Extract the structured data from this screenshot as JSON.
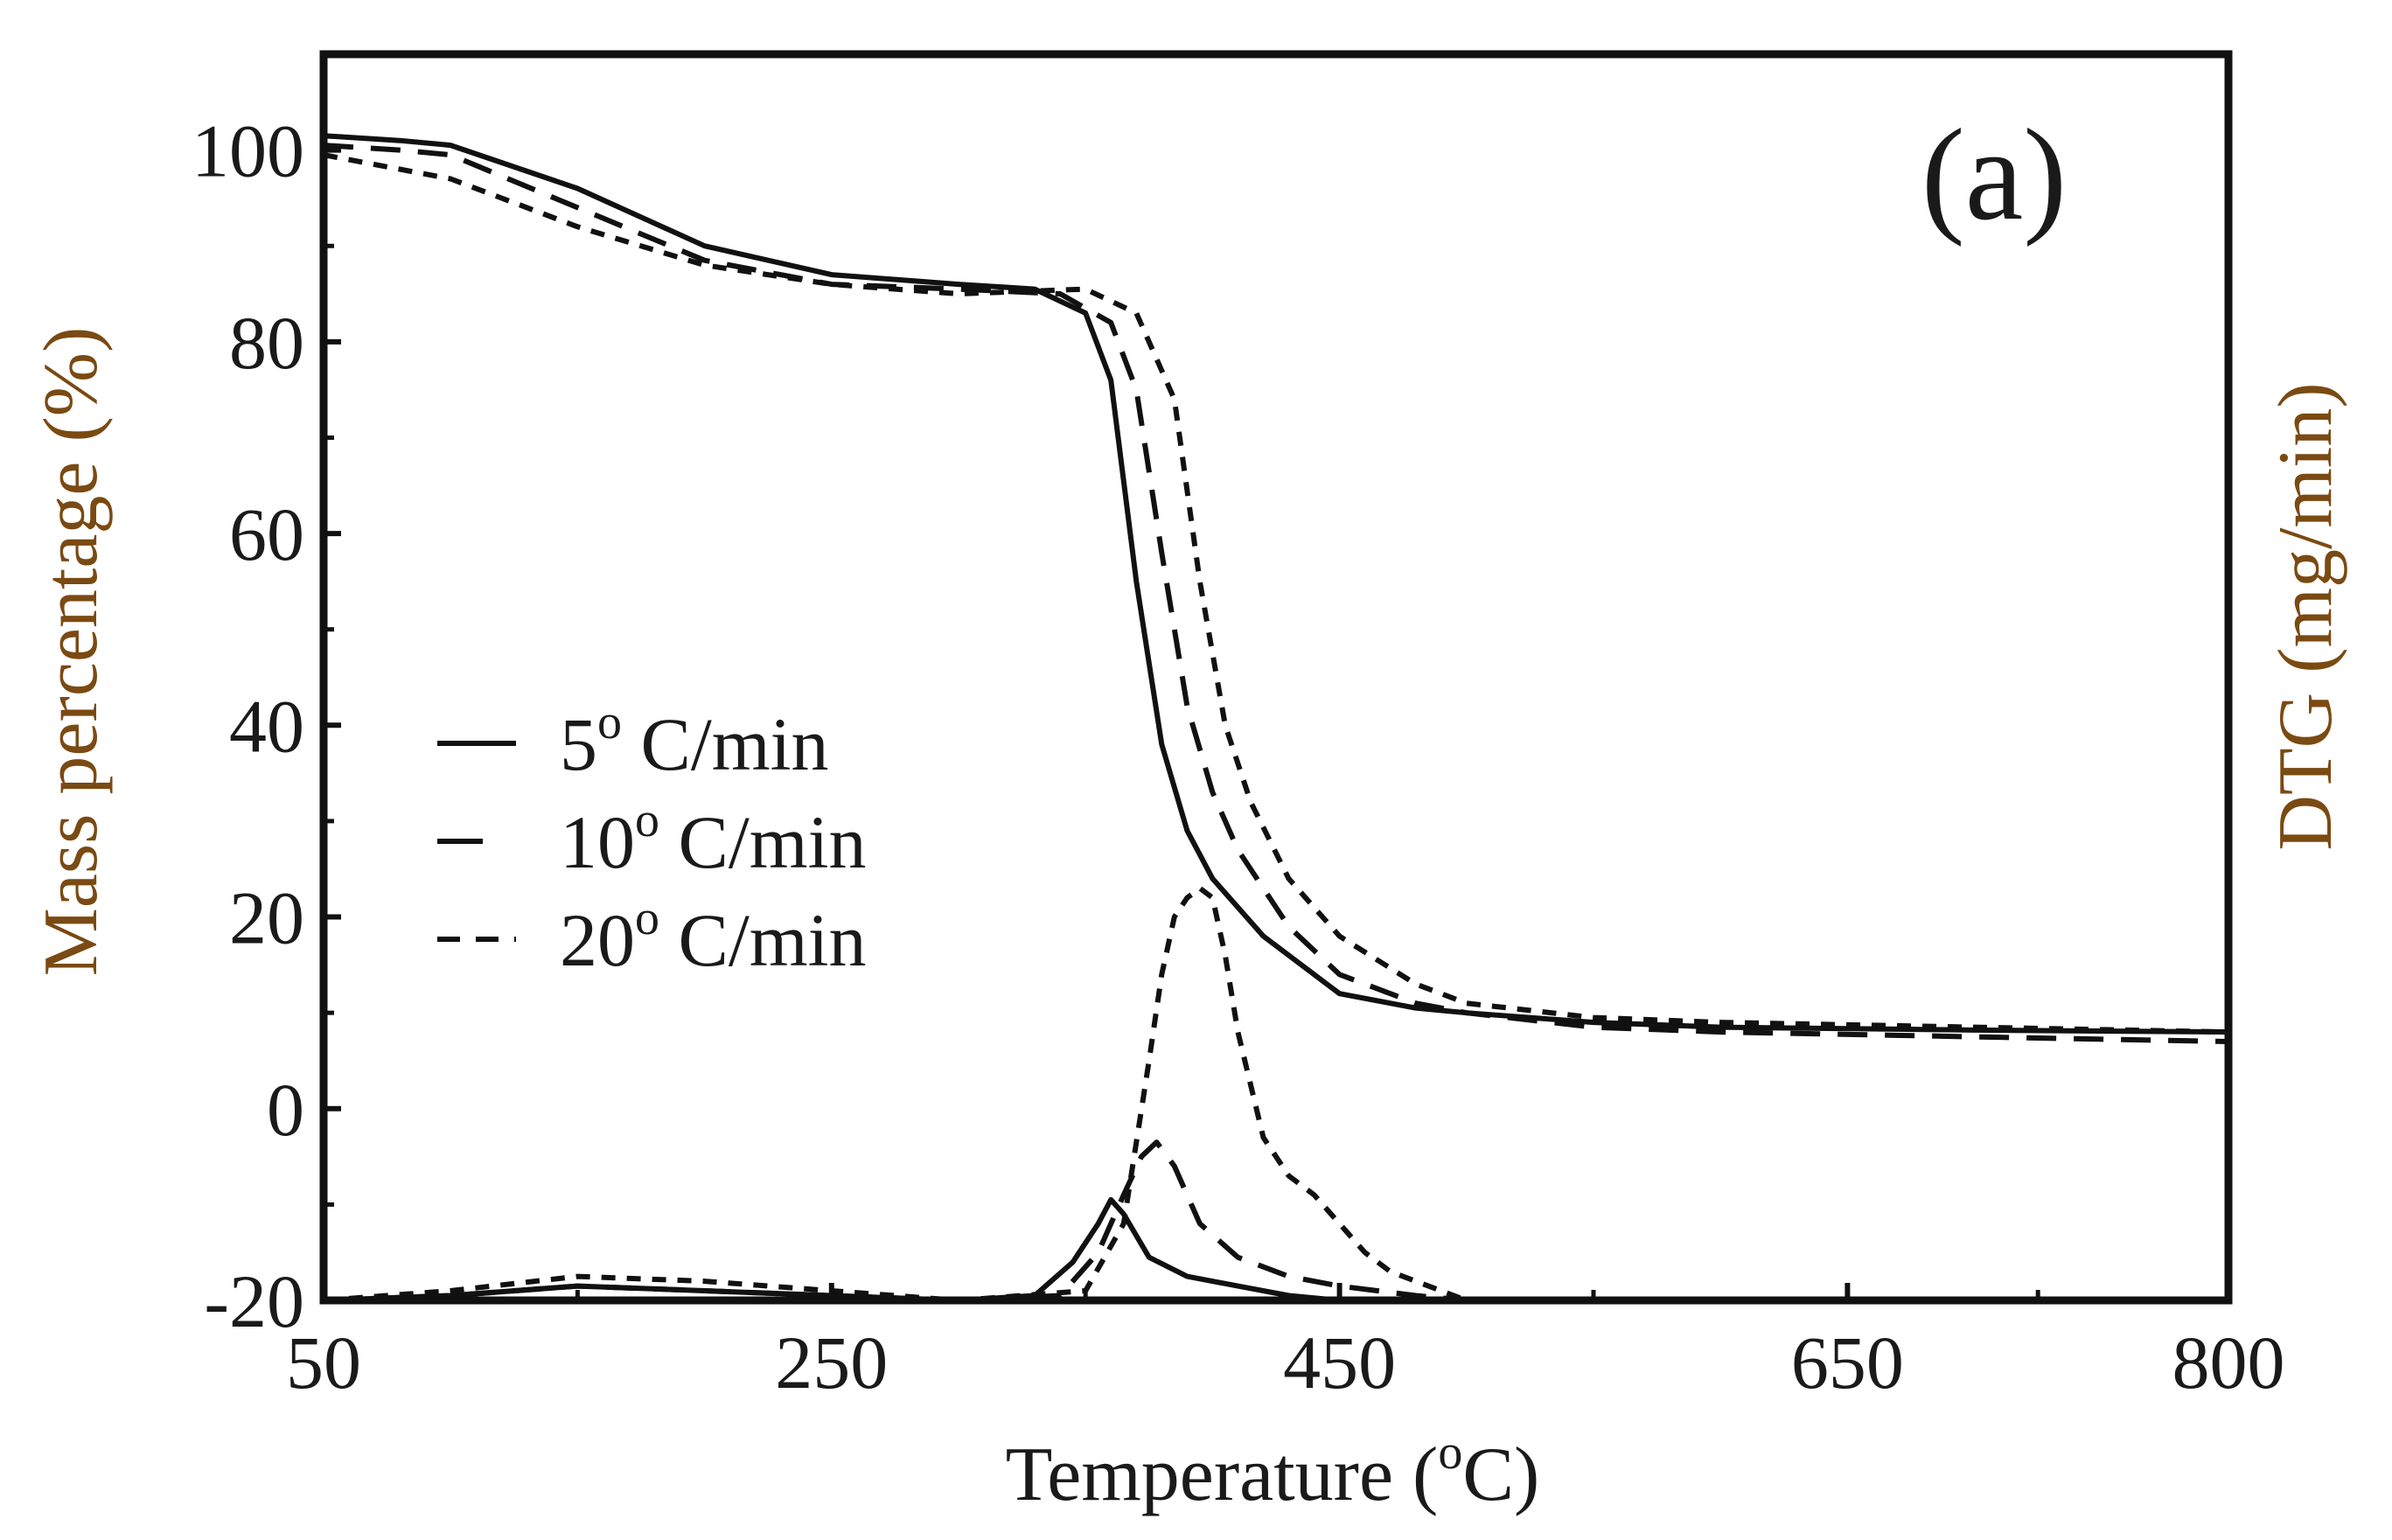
{
  "chart_data": {
    "type": "line",
    "panel_label": "(a)",
    "xlabel": "Temperature (°C)",
    "xlabel_parts": {
      "before": "Temperature (",
      "sup": "o",
      "after": "C)"
    },
    "ylabel_left": "Mass percentage  (%)",
    "ylabel_right": "DTG (mg/min)",
    "ylabel_color": "#7a4a12",
    "xlim": [
      50,
      800
    ],
    "ylim": [
      -20,
      110
    ],
    "xticks": [
      50,
      250,
      450,
      650,
      800
    ],
    "yticks": [
      -20,
      0,
      20,
      40,
      60,
      80,
      100
    ],
    "legend": {
      "position": "center-left",
      "entries": [
        {
          "label": "5° C/min",
          "num": "5",
          "sup": "o",
          "unit": " C/min",
          "style": "solid"
        },
        {
          "label": "10° C/min",
          "num": "10",
          "sup": "o",
          "unit": " C/min",
          "style": "long-dash"
        },
        {
          "label": "20° C/min",
          "num": "20",
          "sup": "o",
          "unit": " C/min",
          "style": "short-dash"
        }
      ]
    },
    "series": [
      {
        "name": "5° C/min TG",
        "style": "solid",
        "x": [
          50,
          80,
          100,
          150,
          200,
          250,
          300,
          330,
          350,
          360,
          370,
          380,
          390,
          400,
          420,
          450,
          480,
          500,
          550,
          600,
          700,
          800
        ],
        "y": [
          101.5,
          101,
          100.5,
          96,
          90,
          87,
          86,
          85.5,
          83,
          76,
          55,
          38,
          29,
          24,
          18,
          12,
          10.5,
          10,
          9,
          8.5,
          8.2,
          8
        ]
      },
      {
        "name": "10° C/min TG",
        "style": "long-dash",
        "x": [
          50,
          80,
          100,
          150,
          200,
          250,
          300,
          340,
          360,
          370,
          380,
          390,
          400,
          410,
          430,
          450,
          480,
          500,
          550,
          600,
          700,
          800
        ],
        "y": [
          100.5,
          100,
          99.5,
          94,
          88.5,
          86,
          85.5,
          85,
          82,
          75,
          58,
          42,
          33,
          27,
          19,
          14,
          11,
          10,
          8.5,
          8,
          7.5,
          7
        ]
      },
      {
        "name": "20° C/min TG",
        "style": "short-dash",
        "x": [
          50,
          80,
          100,
          150,
          200,
          250,
          300,
          350,
          370,
          385,
          395,
          405,
          415,
          430,
          450,
          480,
          500,
          550,
          600,
          700,
          800
        ],
        "y": [
          99.5,
          98,
          97,
          92,
          88,
          86,
          85,
          85.5,
          83,
          74,
          55,
          40,
          32,
          24,
          18,
          13,
          11,
          9.5,
          9,
          8.5,
          8
        ]
      },
      {
        "name": "5° C/min DTG",
        "style": "solid",
        "x": [
          50,
          100,
          150,
          200,
          250,
          300,
          330,
          345,
          355,
          360,
          365,
          375,
          390,
          410,
          430,
          450,
          500,
          600,
          700,
          800
        ],
        "y": [
          -20,
          -19.5,
          -18.5,
          -19,
          -19.5,
          -20,
          -19.5,
          -16,
          -12,
          -9.5,
          -11,
          -15.5,
          -17.5,
          -18.5,
          -19.5,
          -20,
          -20,
          -20,
          -20,
          -20
        ]
      },
      {
        "name": "10° C/min DTG",
        "style": "long-dash",
        "x": [
          50,
          100,
          150,
          200,
          250,
          300,
          340,
          355,
          365,
          372,
          378,
          385,
          395,
          410,
          430,
          450,
          480,
          500,
          600,
          800
        ],
        "y": [
          -20,
          -19.5,
          -18.5,
          -19,
          -19.5,
          -20,
          -19.5,
          -15,
          -9,
          -5,
          -3.5,
          -6,
          -12,
          -15.5,
          -17.5,
          -18.5,
          -19.5,
          -20,
          -20,
          -20
        ]
      },
      {
        "name": "20° C/min DTG",
        "style": "short-dash",
        "x": [
          50,
          100,
          150,
          200,
          250,
          300,
          350,
          365,
          375,
          380,
          385,
          390,
          395,
          400,
          405,
          410,
          420,
          430,
          440,
          450,
          460,
          470,
          500,
          600,
          800
        ],
        "y": [
          -20,
          -19,
          -17.5,
          -18,
          -19,
          -20,
          -19,
          -12,
          5,
          14,
          20,
          22,
          23,
          22,
          16,
          8,
          -3,
          -7,
          -9,
          -12,
          -15,
          -17,
          -20,
          -20,
          -20
        ]
      }
    ]
  }
}
